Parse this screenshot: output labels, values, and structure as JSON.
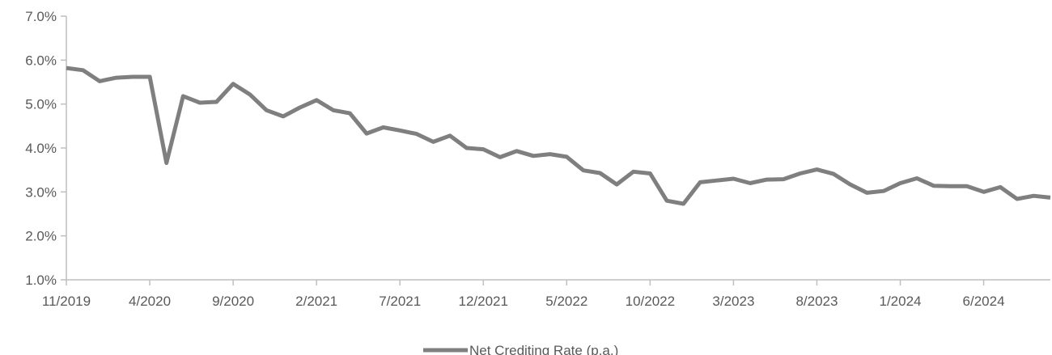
{
  "chart_data": {
    "type": "line",
    "title": "",
    "xlabel": "",
    "ylabel": "",
    "ylim": [
      0.01,
      0.07
    ],
    "y_ticks": [
      "1.0%",
      "2.0%",
      "3.0%",
      "4.0%",
      "5.0%",
      "6.0%",
      "7.0%"
    ],
    "y_tick_values": [
      0.01,
      0.02,
      0.03,
      0.04,
      0.05,
      0.06,
      0.07
    ],
    "x_tick_labels": [
      "11/2019",
      "4/2020",
      "9/2020",
      "2/2021",
      "7/2021",
      "12/2021",
      "5/2022",
      "10/2022",
      "3/2023",
      "8/2023",
      "1/2024",
      "6/2024"
    ],
    "x_tick_indices": [
      0,
      5,
      10,
      15,
      20,
      25,
      30,
      35,
      40,
      45,
      50,
      55
    ],
    "x_start": "11/2019",
    "grid": false,
    "legend_position": "bottom-center",
    "line_color": "#7f7f7f",
    "series": [
      {
        "name": "Net Crediting Rate (p.a.)",
        "values": [
          0.0582,
          0.0577,
          0.0552,
          0.056,
          0.0562,
          0.0562,
          0.0366,
          0.0518,
          0.0503,
          0.0505,
          0.0546,
          0.0522,
          0.0486,
          0.0472,
          0.0492,
          0.0509,
          0.0486,
          0.0479,
          0.0433,
          0.0447,
          0.044,
          0.0432,
          0.0414,
          0.0428,
          0.04,
          0.0397,
          0.0379,
          0.0393,
          0.0382,
          0.0386,
          0.038,
          0.0349,
          0.0343,
          0.0317,
          0.0346,
          0.0342,
          0.028,
          0.0273,
          0.0322,
          0.0326,
          0.033,
          0.032,
          0.0328,
          0.0329,
          0.0342,
          0.0351,
          0.0341,
          0.0317,
          0.0298,
          0.0302,
          0.032,
          0.0331,
          0.0314,
          0.0313,
          0.0313,
          0.03,
          0.0311,
          0.0284,
          0.0291,
          0.0287
        ]
      }
    ]
  }
}
